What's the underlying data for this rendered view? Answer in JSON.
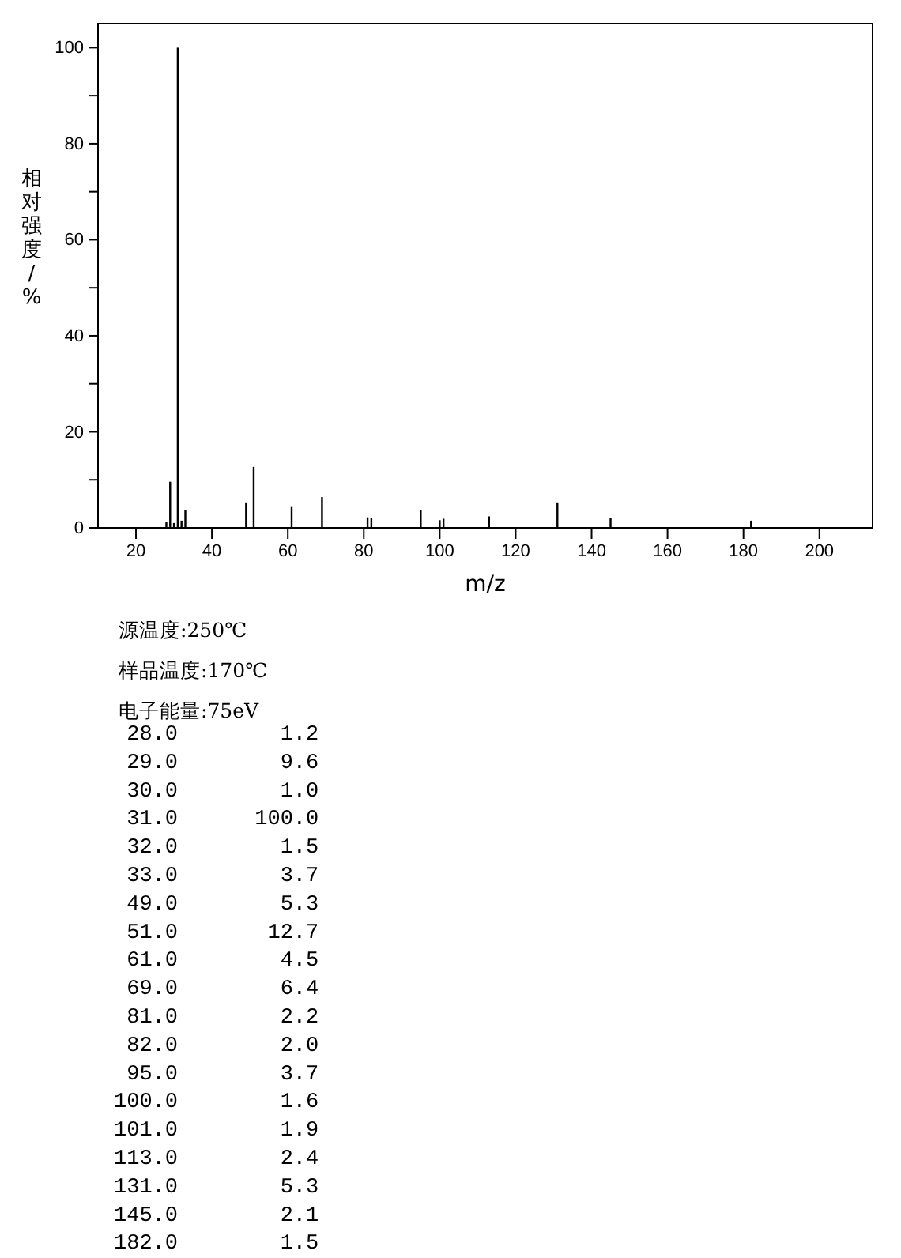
{
  "chart_data": [
    {
      "type": "bar",
      "xlabel": "m/z",
      "ylabel": "相对强度/%",
      "x": [
        28,
        29,
        30,
        31,
        32,
        33,
        49,
        51,
        61,
        69,
        81,
        82,
        95,
        100,
        101,
        113,
        131,
        145,
        182
      ],
      "values": [
        1.2,
        9.6,
        1.0,
        100.0,
        1.5,
        3.7,
        5.3,
        12.7,
        4.5,
        6.4,
        2.2,
        2.0,
        3.7,
        1.6,
        1.9,
        2.4,
        5.3,
        2.1,
        1.5
      ],
      "color": "#000000",
      "grid": false,
      "legend": false,
      "xlim": [
        10,
        214
      ],
      "ylim": [
        0,
        105
      ],
      "xticks": [
        20,
        40,
        60,
        80,
        100,
        120,
        140,
        160,
        180,
        200
      ],
      "yticks": [
        0,
        {
          "value": 10,
          "label": null
        },
        20,
        {
          "value": 30,
          "label": null
        },
        40,
        {
          "value": 50,
          "label": null
        },
        60,
        {
          "value": 70,
          "label": null
        },
        80,
        {
          "value": 90,
          "label": null
        },
        100
      ]
    },
    {
      "type": "other",
      "annotations": [
        "源温度:250℃",
        "样品温度:170℃",
        "电子能量:75eV",
        " 28.0        1.2",
        " 29.0        9.6",
        " 30.0        1.0",
        " 31.0      100.0",
        " 32.0        1.5",
        " 33.0        3.7",
        " 49.0        5.3",
        " 51.0       12.7",
        " 61.0        4.5",
        " 69.0        6.4",
        " 81.0        2.2",
        " 82.0        2.0",
        " 95.0        3.7",
        "100.0        1.6",
        "101.0        1.9",
        "113.0        2.4",
        "131.0        5.3",
        "145.0        2.1",
        "182.0        1.5"
      ]
    }
  ]
}
